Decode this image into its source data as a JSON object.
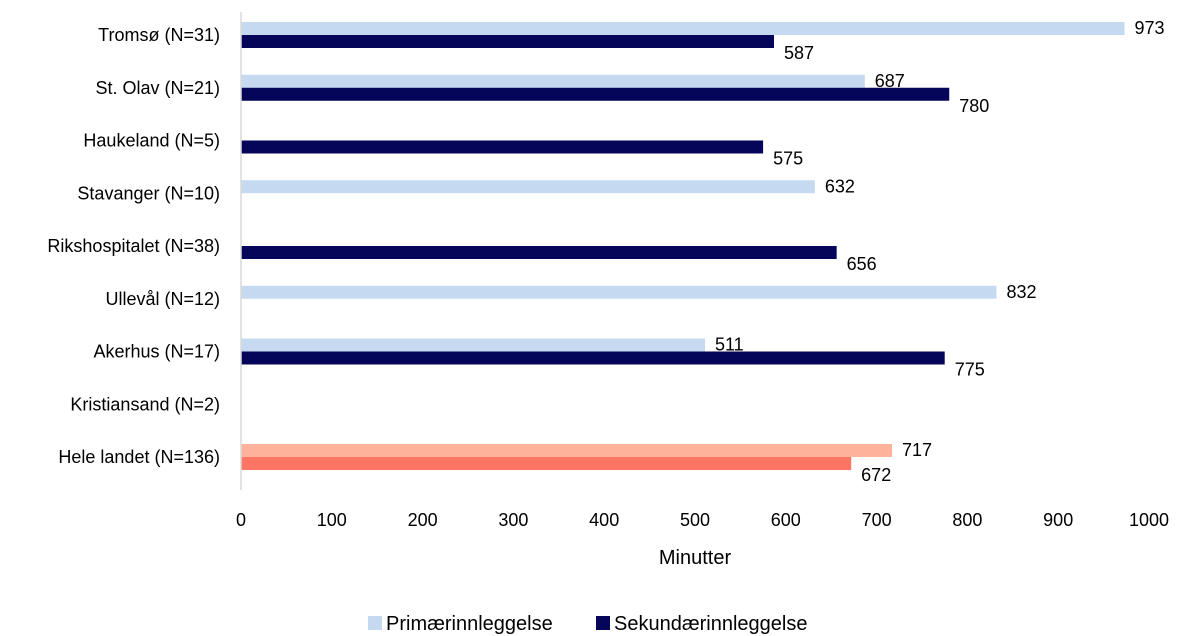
{
  "chart_data": {
    "type": "bar",
    "orientation": "horizontal",
    "categories": [
      "Tromsø (N=31)",
      "St. Olav (N=21)",
      "Haukeland (N=5)",
      "Stavanger (N=10)",
      "Rikshospitalet (N=38)",
      "Ullevål (N=12)",
      "Akerhus  (N=17)",
      "Kristiansand  (N=2)",
      "Hele landet (N=136)"
    ],
    "series": [
      {
        "name": "Primærinnleggelse",
        "values": [
          973,
          687,
          null,
          632,
          null,
          832,
          511,
          null,
          717
        ],
        "color": "#c5d9f0",
        "highlight_color": "#ffb39b"
      },
      {
        "name": "Sekundærinnleggelse",
        "values": [
          587,
          780,
          575,
          null,
          656,
          null,
          775,
          null,
          672
        ],
        "color": "#050559",
        "highlight_color": "#ff7563"
      }
    ],
    "highlight_category": "Hele landet (N=136)",
    "xlabel": "Minutter",
    "xlim": [
      0,
      1000
    ],
    "xticks": [
      "0",
      "100",
      "200",
      "300",
      "400",
      "500",
      "600",
      "700",
      "800",
      "900",
      "1000"
    ],
    "grid": false,
    "legend_position": "bottom"
  }
}
